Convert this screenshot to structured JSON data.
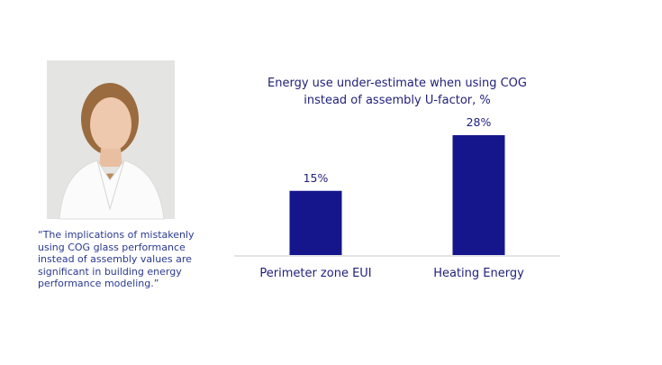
{
  "quote": "“The implications of mistakenly using COG glass performance instead of assembly values are significant in building energy performance modeling.”",
  "chart_data": {
    "type": "bar",
    "title": "Energy use under-estimate when using COG instead of assembly U-factor, %",
    "categories": [
      "Perimeter zone EUI",
      "Heating Energy"
    ],
    "values": [
      15,
      28
    ],
    "value_labels": [
      "15%",
      "28%"
    ],
    "color": "#16168c"
  }
}
